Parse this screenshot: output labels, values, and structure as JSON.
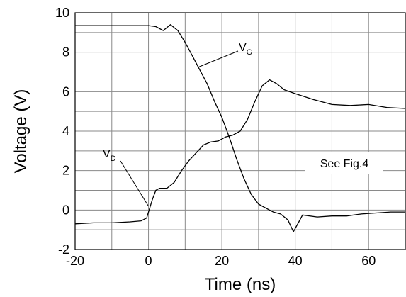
{
  "chart_data": {
    "type": "line",
    "xlabel": "Time (ns)",
    "ylabel": "Voltage (V)",
    "xlim": [
      -20,
      70
    ],
    "ylim": [
      -2,
      10
    ],
    "x_ticks": [
      -20,
      0,
      20,
      40,
      60
    ],
    "y_ticks": [
      -2,
      0,
      2,
      4,
      6,
      8,
      10
    ],
    "grid": true,
    "series": [
      {
        "name": "VG",
        "label": {
          "main": "V",
          "sub": "G"
        },
        "points": [
          [
            -20,
            9.35
          ],
          [
            -10,
            9.35
          ],
          [
            0,
            9.35
          ],
          [
            2,
            9.3
          ],
          [
            4,
            9.1
          ],
          [
            6,
            9.4
          ],
          [
            8,
            9.1
          ],
          [
            10,
            8.5
          ],
          [
            12,
            7.8
          ],
          [
            14,
            7.1
          ],
          [
            16,
            6.4
          ],
          [
            18,
            5.5
          ],
          [
            20,
            4.7
          ],
          [
            22,
            3.7
          ],
          [
            24,
            2.6
          ],
          [
            26,
            1.6
          ],
          [
            28,
            0.8
          ],
          [
            30,
            0.3
          ],
          [
            32,
            0.1
          ],
          [
            34,
            -0.1
          ],
          [
            36,
            -0.2
          ],
          [
            38,
            -0.5
          ],
          [
            39.5,
            -1.1
          ],
          [
            41,
            -0.6
          ],
          [
            42,
            -0.25
          ],
          [
            46,
            -0.35
          ],
          [
            50,
            -0.3
          ],
          [
            54,
            -0.3
          ],
          [
            58,
            -0.2
          ],
          [
            62,
            -0.15
          ],
          [
            66,
            -0.1
          ],
          [
            70,
            -0.1
          ]
        ]
      },
      {
        "name": "VD",
        "label": {
          "main": "V",
          "sub": "D"
        },
        "points": [
          [
            -20,
            -0.7
          ],
          [
            -15,
            -0.65
          ],
          [
            -10,
            -0.65
          ],
          [
            -5,
            -0.6
          ],
          [
            -2,
            -0.55
          ],
          [
            -0.5,
            -0.4
          ],
          [
            0,
            -0.1
          ],
          [
            1,
            0.5
          ],
          [
            2,
            1.0
          ],
          [
            3,
            1.1
          ],
          [
            5,
            1.1
          ],
          [
            7,
            1.4
          ],
          [
            9,
            2.0
          ],
          [
            11,
            2.5
          ],
          [
            13,
            2.9
          ],
          [
            15,
            3.3
          ],
          [
            17,
            3.45
          ],
          [
            19,
            3.5
          ],
          [
            21,
            3.7
          ],
          [
            23,
            3.8
          ],
          [
            25,
            4.0
          ],
          [
            27,
            4.6
          ],
          [
            29,
            5.5
          ],
          [
            31,
            6.3
          ],
          [
            33,
            6.6
          ],
          [
            35,
            6.4
          ],
          [
            37,
            6.1
          ],
          [
            40,
            5.9
          ],
          [
            45,
            5.6
          ],
          [
            50,
            5.35
          ],
          [
            55,
            5.3
          ],
          [
            60,
            5.35
          ],
          [
            65,
            5.2
          ],
          [
            70,
            5.15
          ]
        ]
      }
    ],
    "annotation": "See Fig.4"
  }
}
